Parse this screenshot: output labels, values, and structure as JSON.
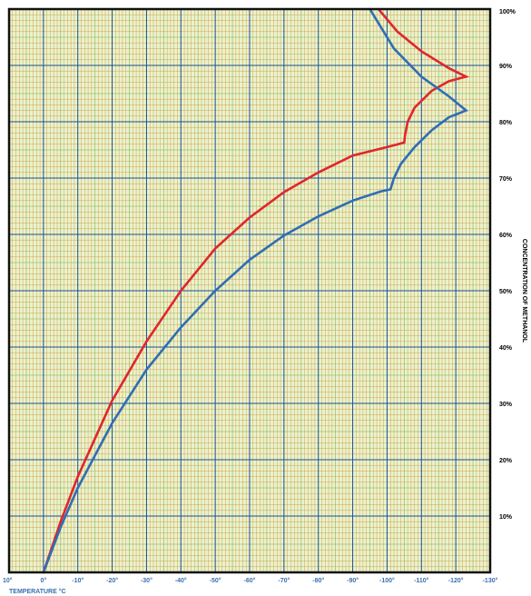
{
  "chart_data": {
    "type": "line",
    "title": "",
    "xlabel": "TEMPERATURE °C",
    "ylabel": "CONCENTRATION OF METHANOL",
    "xlim": [
      10,
      -130
    ],
    "ylim": [
      0,
      100
    ],
    "grid": true,
    "x_ticks": [
      "10°",
      "0°",
      "-10°",
      "-20°",
      "-30°",
      "-40°",
      "-50°",
      "-60°",
      "-70°",
      "-80°",
      "-90°",
      "-100°",
      "-110°",
      "-120°",
      "-130°"
    ],
    "y_ticks": [
      "10%",
      "20%",
      "30%",
      "40%",
      "50%",
      "60%",
      "70%",
      "80%",
      "90%",
      "100%"
    ],
    "series": [
      {
        "color": "#e0262b",
        "points": [
          [
            0,
            0
          ],
          [
            -5,
            9
          ],
          [
            -10,
            17
          ],
          [
            -20,
            30.5
          ],
          [
            -30,
            41
          ],
          [
            -40,
            50
          ],
          [
            -50,
            57.5
          ],
          [
            -60,
            63
          ],
          [
            -70,
            67.5
          ],
          [
            -80,
            71
          ],
          [
            -90,
            74
          ],
          [
            -100,
            75.5
          ],
          [
            -105,
            76.3
          ],
          [
            -105.2,
            77.5
          ],
          [
            -106,
            80
          ],
          [
            -108,
            82.5
          ],
          [
            -113,
            85.5
          ],
          [
            -118,
            87.2
          ],
          [
            -123,
            88
          ],
          [
            -118,
            89.5
          ],
          [
            -110,
            92.5
          ],
          [
            -103,
            96
          ],
          [
            -97.5,
            100
          ]
        ]
      },
      {
        "color": "#2f6db5",
        "points": [
          [
            0,
            0
          ],
          [
            -5,
            8
          ],
          [
            -10,
            15
          ],
          [
            -20,
            26.5
          ],
          [
            -30,
            36
          ],
          [
            -40,
            43.5
          ],
          [
            -50,
            50
          ],
          [
            -60,
            55.5
          ],
          [
            -70,
            59.8
          ],
          [
            -80,
            63.2
          ],
          [
            -90,
            66
          ],
          [
            -98,
            67.6
          ],
          [
            -101,
            68
          ],
          [
            -102,
            70
          ],
          [
            -104,
            72.5
          ],
          [
            -108,
            75.5
          ],
          [
            -113,
            78.5
          ],
          [
            -118,
            80.8
          ],
          [
            -123,
            82
          ],
          [
            -118,
            84.5
          ],
          [
            -110,
            88
          ],
          [
            -102,
            93
          ],
          [
            -95,
            100
          ]
        ]
      }
    ]
  }
}
